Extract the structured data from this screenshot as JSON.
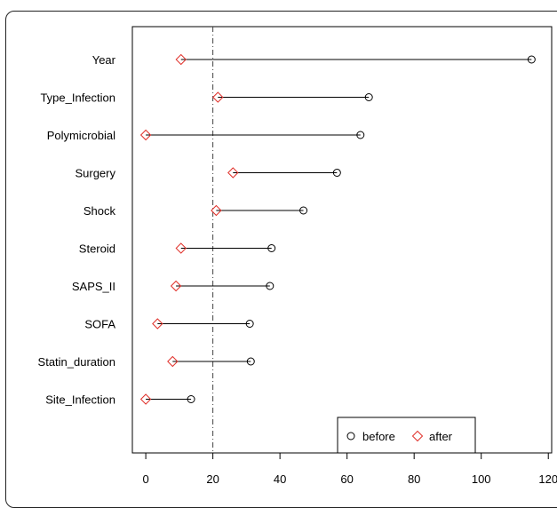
{
  "chart_data": {
    "type": "dot",
    "categories": [
      "Year",
      "Type_Infection",
      "Polymicrobial",
      "Surgery",
      "Shock",
      "Steroid",
      "SAPS_II",
      "SOFA",
      "Statin_duration",
      "Site_Infection"
    ],
    "series": [
      {
        "name": "before",
        "marker": "circle",
        "color": "#000000",
        "values": [
          115,
          66.5,
          64,
          57,
          47,
          37.5,
          37,
          31,
          31.3,
          13.5
        ]
      },
      {
        "name": "after",
        "marker": "diamond",
        "color": "#e0302a",
        "values": [
          10.5,
          21.5,
          0,
          26,
          21,
          10.5,
          9,
          3.5,
          8,
          0
        ]
      }
    ],
    "reference_line": {
      "x": 20,
      "style": "dash-dot"
    },
    "xlim": [
      -4,
      121
    ],
    "x_ticks": [
      0,
      20,
      40,
      60,
      80,
      100,
      120
    ],
    "legend": {
      "position": "bottom-right",
      "labels": [
        "before",
        "after"
      ]
    },
    "title": "",
    "xlabel": "",
    "ylabel": ""
  }
}
